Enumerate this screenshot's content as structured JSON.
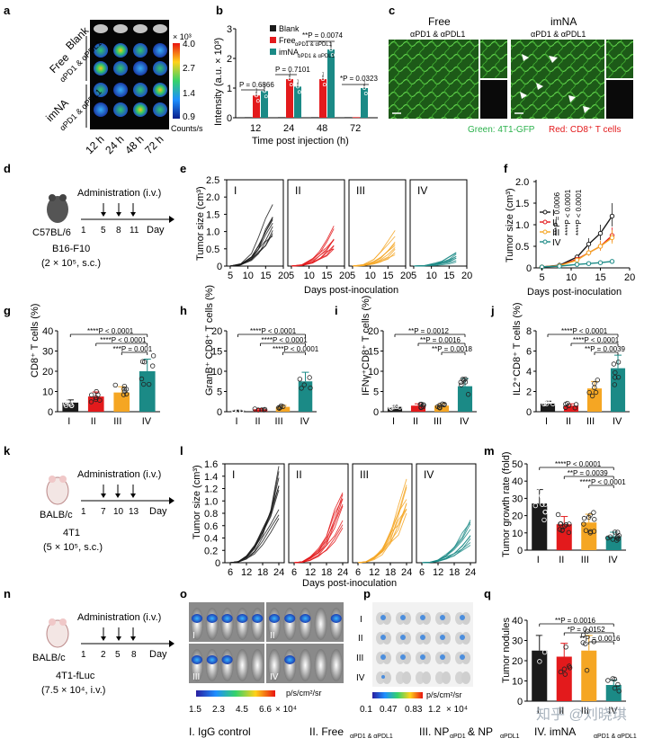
{
  "colors": {
    "I": "#1a1a1a",
    "II": "#e31a1c",
    "III": "#f5a623",
    "IV": "#1b8a86",
    "green": "#2bb24c",
    "red": "#e31a1c"
  },
  "panel_labels": {
    "a": "a",
    "b": "b",
    "c": "c",
    "d": "d",
    "e": "e",
    "f": "f",
    "g": "g",
    "h": "h",
    "i": "i",
    "j": "j",
    "k": "k",
    "l": "l",
    "m": "m",
    "n": "n",
    "o": "o",
    "p": "p",
    "q": "q"
  },
  "panel_a": {
    "row_labels": [
      "Blank",
      "Free",
      "αPD1 & αPDL1",
      "imNA",
      "αPD1 & αPDL1"
    ],
    "col_labels": [
      "12 h",
      "24 h",
      "48 h",
      "72 h"
    ],
    "colorbar_ticks": [
      "4.0",
      "2.7",
      "1.4",
      "0.9"
    ],
    "colorbar_exp": "× 10³",
    "colorbar_unit": "Counts/s"
  },
  "panel_c": {
    "free_title": "Free",
    "free_sub": "αPD1 & αPDL1",
    "imna_title": "imNA",
    "imna_sub": "αPD1 & αPDL1",
    "legend_green": "Green: 4T1-GFP",
    "legend_red": "Red: CD8⁺ T cells"
  },
  "schemes": {
    "d": {
      "title": "Administration (i.v.)",
      "days": [
        "1",
        "5",
        "8",
        "11"
      ],
      "day_label": "Day",
      "mouse": "C57BL/6",
      "tumor": "B16-F10",
      "dose": "(2 × 10⁵, s.c.)"
    },
    "k": {
      "title": "Administration (i.v.)",
      "days": [
        "1",
        "7",
        "10",
        "13"
      ],
      "day_label": "Day",
      "mouse": "BALB/c",
      "tumor": "4T1",
      "dose": "(5 × 10⁵, s.c.)"
    },
    "n": {
      "title": "Administration (i.v.)",
      "days": [
        "1",
        "2",
        "5",
        "8"
      ],
      "day_label": "Day",
      "mouse": "BALB/c",
      "tumor": "4T1-fLuc",
      "dose": "(7.5 × 10⁴, i.v.)"
    }
  },
  "panel_o": {
    "labels": [
      "I",
      "II",
      "III",
      "IV"
    ],
    "ticks": [
      "1.5",
      "2.3",
      "4.5",
      "6.6"
    ],
    "exp": "× 10⁴",
    "unit": "p/s/cm²/sr"
  },
  "panel_p": {
    "labels": [
      "I",
      "II",
      "III",
      "IV"
    ],
    "ticks": [
      "0.1",
      "0.47",
      "0.83",
      "1.2"
    ],
    "exp": "× 10⁴",
    "unit": "p/s/cm²/sr"
  },
  "legend": {
    "I": "I. IgG control",
    "II": "II. Free",
    "II_sub": "αPD1 & αPDL1",
    "III": "III. NP",
    "III_mid": " & NP",
    "III_sub": "αPD1",
    "III_sub2": "αPDL1",
    "IV": "IV. imNA",
    "IV_sub": "αPD1 & αPDL1"
  },
  "watermark": "知乎 @刘晓琪",
  "chart_data": [
    {
      "id": "b",
      "type": "bar",
      "title": "",
      "xlabel": "Time post injection (h)",
      "ylabel": "Intensity (a.u. × 10³)",
      "categories": [
        "12",
        "24",
        "48",
        "72"
      ],
      "ylim": [
        0,
        3
      ],
      "yticks": [
        0,
        1,
        2,
        3
      ],
      "legend": [
        "Blank",
        "Free",
        "imNA"
      ],
      "legend_sub": [
        "",
        "αPD1 & αPDL1",
        "αPD1 & αPDL1"
      ],
      "series": [
        {
          "name": "Blank",
          "values": [
            0.02,
            0.02,
            0.02,
            0.02
          ]
        },
        {
          "name": "Free",
          "values": [
            0.75,
            1.3,
            1.3,
            0.02
          ]
        },
        {
          "name": "imNA",
          "values": [
            0.9,
            1.05,
            2.3,
            1.0
          ]
        }
      ],
      "pvalues": [
        "P = 0.6866",
        "P = 0.7101",
        "**P = 0.0074",
        "*P = 0.0323"
      ]
    },
    {
      "id": "e",
      "type": "line",
      "xlabel": "Days post-inoculation",
      "ylabel": "Tumor size (cm³)",
      "ylim": [
        0,
        2.5
      ],
      "yticks": [
        "0",
        "0.5",
        "1.0",
        "1.5",
        "2.0",
        "2.5"
      ],
      "xticks": [
        "5",
        "10",
        "15",
        "20"
      ],
      "groups": [
        "I",
        "II",
        "III",
        "IV"
      ],
      "final_max": [
        2.2,
        1.25,
        1.05,
        0.55
      ],
      "final_min": [
        0.9,
        0.4,
        0.3,
        0.1
      ]
    },
    {
      "id": "f",
      "type": "line",
      "xlabel": "Days post-inoculation",
      "ylabel": "Tumor size (cm³)",
      "ylim": [
        0,
        2
      ],
      "yticks": [
        "0",
        "0.5",
        "1.0",
        "1.5",
        "2.0"
      ],
      "xticks": [
        "5",
        "10",
        "15",
        "20"
      ],
      "x": [
        5,
        8,
        11,
        13,
        15,
        17
      ],
      "series": [
        {
          "name": "I",
          "values": [
            0.02,
            0.06,
            0.25,
            0.55,
            0.8,
            1.2
          ]
        },
        {
          "name": "II",
          "values": [
            0.02,
            0.05,
            0.2,
            0.35,
            0.5,
            0.75
          ]
        },
        {
          "name": "III",
          "values": [
            0.02,
            0.05,
            0.18,
            0.35,
            0.5,
            0.7
          ]
        },
        {
          "name": "IV",
          "values": [
            0.02,
            0.04,
            0.08,
            0.1,
            0.12,
            0.15
          ]
        }
      ],
      "pvalues": [
        "***P = 0.0006",
        "****P < 0.0001",
        "****P < 0.0001"
      ]
    },
    {
      "id": "g",
      "type": "bar",
      "ylabel": "CD8⁺ T cells (%)",
      "categories": [
        "I",
        "II",
        "III",
        "IV"
      ],
      "values": [
        4.5,
        7.5,
        9.5,
        20
      ],
      "ylim": [
        0,
        40
      ],
      "yticks": [
        "0",
        "10",
        "20",
        "30",
        "40"
      ],
      "pvalues": [
        "****P < 0.0001",
        "****P < 0.0001",
        "***P = 0.001"
      ]
    },
    {
      "id": "h",
      "type": "bar",
      "ylabel": "GranB⁺ CD8⁺ T cells (%)",
      "categories": [
        "I",
        "II",
        "III",
        "IV"
      ],
      "values": [
        0.3,
        0.6,
        1.2,
        7.5
      ],
      "ylim": [
        0,
        20
      ],
      "yticks": [
        "0",
        "5",
        "10",
        "15",
        "20"
      ],
      "pvalues": [
        "****P < 0.0001",
        "****P < 0.0001",
        "****P < 0.0001"
      ]
    },
    {
      "id": "i",
      "type": "bar",
      "ylabel": "IFNγ⁺CD8⁺ T cells (%)",
      "categories": [
        "I",
        "II",
        "III",
        "IV"
      ],
      "values": [
        1.2,
        1.5,
        1.5,
        6.3
      ],
      "ylim": [
        0,
        20
      ],
      "yticks": [
        "0",
        "5",
        "10",
        "15",
        "20"
      ],
      "pvalues": [
        "**P = 0.0012",
        "**P = 0.0016",
        "**P = 0.0018"
      ]
    },
    {
      "id": "j",
      "type": "bar",
      "ylabel": "IL2⁺CD8⁺ T cells (%)",
      "categories": [
        "I",
        "II",
        "III",
        "IV"
      ],
      "values": [
        0.8,
        0.6,
        2.3,
        4.3
      ],
      "ylim": [
        0,
        8
      ],
      "yticks": [
        "0",
        "2",
        "4",
        "6",
        "8"
      ],
      "pvalues": [
        "****P < 0.0001",
        "****P < 0.0001",
        "**P = 0.0039"
      ]
    },
    {
      "id": "l",
      "type": "line",
      "xlabel": "Days post-inoculation",
      "ylabel": "Tumor size (cm³)",
      "ylim": [
        0,
        1.6
      ],
      "yticks": [
        "0",
        "0.2",
        "0.4",
        "0.6",
        "0.8",
        "1.0",
        "1.2",
        "1.4",
        "1.6"
      ],
      "xticks": [
        "6",
        "12",
        "18",
        "24"
      ],
      "groups": [
        "I",
        "II",
        "III",
        "IV"
      ],
      "final_max": [
        1.45,
        1.3,
        1.3,
        0.7
      ],
      "final_min": [
        0.7,
        0.6,
        0.75,
        0.3
      ]
    },
    {
      "id": "m",
      "type": "bar",
      "ylabel": "Tumor growth rate (fold)",
      "categories": [
        "I",
        "II",
        "III",
        "IV"
      ],
      "values": [
        27,
        15,
        16,
        8
      ],
      "ylim": [
        0,
        50
      ],
      "yticks": [
        "0",
        "10",
        "20",
        "30",
        "40",
        "50"
      ],
      "pvalues": [
        "****P < 0.0001",
        "**P = 0.0039",
        "****P < 0.0001"
      ]
    },
    {
      "id": "q",
      "type": "bar",
      "ylabel": "Tumor nodules",
      "categories": [
        "I",
        "II",
        "III",
        "IV"
      ],
      "values": [
        25,
        22,
        25,
        8
      ],
      "ylim": [
        0,
        40
      ],
      "yticks": [
        "0",
        "10",
        "20",
        "30",
        "40"
      ],
      "pvalues": [
        "**P = 0.0016",
        "*P = 0.0152",
        "**P = 0.0016"
      ]
    }
  ]
}
